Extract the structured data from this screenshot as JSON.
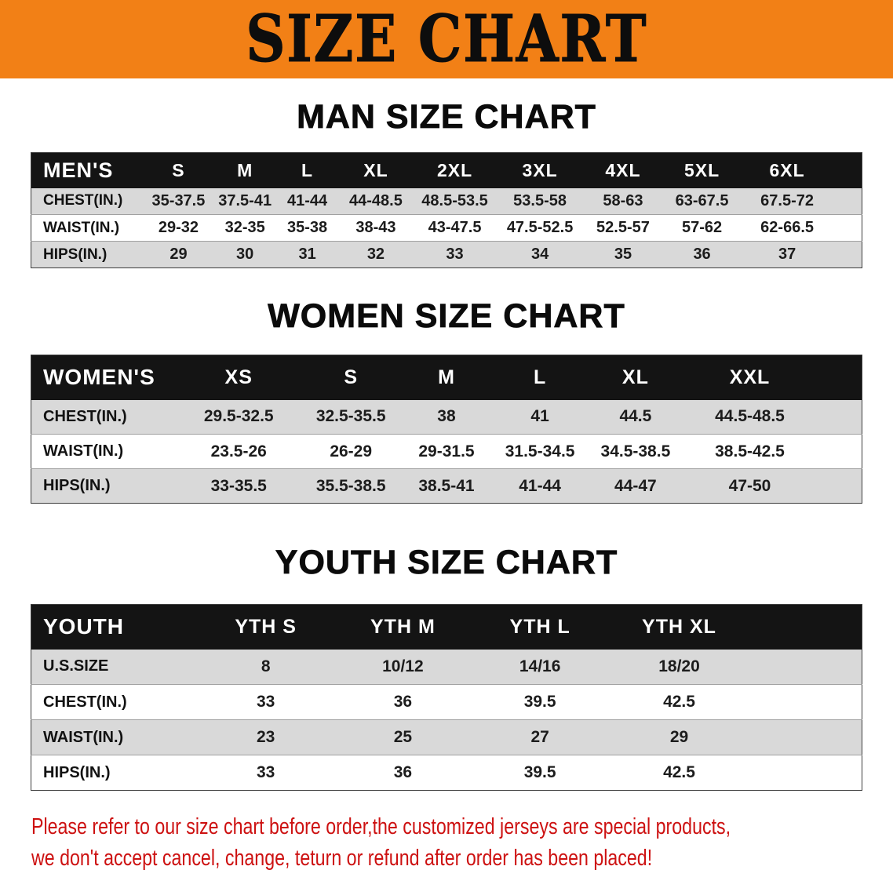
{
  "banner": {
    "title": "SIZE CHART"
  },
  "colors": {
    "banner-bg": "#f28016",
    "header-bg": "#141414",
    "stripe": "#d9d9d9",
    "notice-red": "#cd1111"
  },
  "chart_data": [
    {
      "type": "table",
      "title": "MAN SIZE CHART",
      "header": [
        "MEN'S",
        "S",
        "M",
        "L",
        "XL",
        "2XL",
        "3XL",
        "4XL",
        "5XL",
        "6XL"
      ],
      "rows": [
        {
          "label": "CHEST(IN.)",
          "values": [
            "35-37.5",
            "37.5-41",
            "41-44",
            "44-48.5",
            "48.5-53.5",
            "53.5-58",
            "58-63",
            "63-67.5",
            "67.5-72"
          ]
        },
        {
          "label": "WAIST(IN.)",
          "values": [
            "29-32",
            "32-35",
            "35-38",
            "38-43",
            "43-47.5",
            "47.5-52.5",
            "52.5-57",
            "57-62",
            "62-66.5"
          ]
        },
        {
          "label": "HIPS(IN.)",
          "values": [
            "29",
            "30",
            "31",
            "32",
            "33",
            "34",
            "35",
            "36",
            "37"
          ]
        }
      ]
    },
    {
      "type": "table",
      "title": "WOMEN SIZE CHART",
      "header": [
        "WOMEN'S",
        "XS",
        "S",
        "M",
        "L",
        "XL",
        "XXL"
      ],
      "rows": [
        {
          "label": "CHEST(IN.)",
          "values": [
            "29.5-32.5",
            "32.5-35.5",
            "38",
            "41",
            "44.5",
            "44.5-48.5"
          ]
        },
        {
          "label": "WAIST(IN.)",
          "values": [
            "23.5-26",
            "26-29",
            "29-31.5",
            "31.5-34.5",
            "34.5-38.5",
            "38.5-42.5"
          ]
        },
        {
          "label": "HIPS(IN.)",
          "values": [
            "33-35.5",
            "35.5-38.5",
            "38.5-41",
            "41-44",
            "44-47",
            "47-50"
          ]
        }
      ]
    },
    {
      "type": "table",
      "title": "YOUTH SIZE CHART",
      "header": [
        "YOUTH",
        "YTH S",
        "YTH M",
        "YTH L",
        "YTH XL"
      ],
      "rows": [
        {
          "label": "U.S.SIZE",
          "values": [
            "8",
            "10/12",
            "14/16",
            "18/20"
          ]
        },
        {
          "label": "CHEST(IN.)",
          "values": [
            "33",
            "36",
            "39.5",
            "42.5"
          ]
        },
        {
          "label": "WAIST(IN.)",
          "values": [
            "23",
            "25",
            "27",
            "29"
          ]
        },
        {
          "label": "HIPS(IN.)",
          "values": [
            "33",
            "36",
            "39.5",
            "42.5"
          ]
        }
      ]
    }
  ],
  "footer": {
    "line1": "Please refer to our size chart before order,the customized jerseys are special products,",
    "line2": "we don't accept cancel, change, teturn or refund after order has been placed!"
  }
}
